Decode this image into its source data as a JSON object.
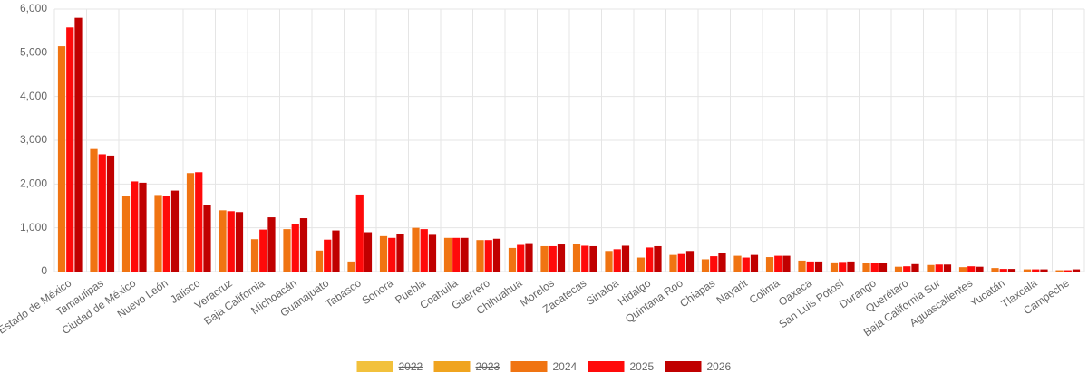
{
  "chart_data": {
    "type": "bar",
    "categories": [
      "Estado de México",
      "Tamaulipas",
      "Ciudad de México",
      "Nuevo León",
      "Jalisco",
      "Veracruz",
      "Baja California",
      "Michoacán",
      "Guanajuato",
      "Tabasco",
      "Sonora",
      "Puebla",
      "Coahuila",
      "Guerrero",
      "Chihuahua",
      "Morelos",
      "Zacatecas",
      "Sinaloa",
      "Hidalgo",
      "Quintana Roo",
      "Chiapas",
      "Nayarit",
      "Colima",
      "Oaxaca",
      "San Luis Potosí",
      "Durango",
      "Querétaro",
      "Baja California Sur",
      "Aguascalientes",
      "Yucatán",
      "Tlaxcala",
      "Campeche"
    ],
    "series": [
      {
        "name": "2022",
        "color": "#f2c13c",
        "hidden": true,
        "values": [
          null,
          null,
          null,
          null,
          null,
          null,
          null,
          null,
          null,
          null,
          null,
          null,
          null,
          null,
          null,
          null,
          null,
          null,
          null,
          null,
          null,
          null,
          null,
          null,
          null,
          null,
          null,
          null,
          null,
          null,
          null,
          null
        ]
      },
      {
        "name": "2023",
        "color": "#f0a41f",
        "hidden": true,
        "values": [
          null,
          null,
          null,
          null,
          null,
          null,
          null,
          null,
          null,
          null,
          null,
          null,
          null,
          null,
          null,
          null,
          null,
          null,
          null,
          null,
          null,
          null,
          null,
          null,
          null,
          null,
          null,
          null,
          null,
          null,
          null,
          null
        ]
      },
      {
        "name": "2024",
        "color": "#f07412",
        "values": [
          5150,
          2800,
          1720,
          1750,
          2250,
          1400,
          740,
          970,
          480,
          230,
          810,
          1000,
          770,
          720,
          540,
          580,
          630,
          470,
          320,
          380,
          280,
          360,
          330,
          250,
          210,
          190,
          110,
          150,
          100,
          80,
          50,
          30
        ]
      },
      {
        "name": "2025",
        "color": "#ff0a0a",
        "values": [
          5580,
          2680,
          2060,
          1720,
          2270,
          1380,
          960,
          1080,
          730,
          1760,
          770,
          970,
          770,
          720,
          610,
          580,
          590,
          510,
          550,
          400,
          350,
          320,
          360,
          230,
          220,
          190,
          120,
          160,
          120,
          60,
          50,
          30
        ]
      },
      {
        "name": "2026",
        "color": "#c00000",
        "values": [
          5800,
          2650,
          2030,
          1850,
          1520,
          1360,
          1240,
          1220,
          940,
          900,
          850,
          840,
          770,
          750,
          650,
          620,
          580,
          590,
          580,
          470,
          430,
          380,
          360,
          230,
          230,
          190,
          170,
          160,
          110,
          60,
          50,
          50
        ]
      }
    ],
    "ylim": [
      0,
      6000
    ],
    "yticks": [
      0,
      {
        "value": 1000,
        "label": "1,000"
      },
      {
        "value": 2000,
        "label": "2,000"
      },
      {
        "value": 3000,
        "label": "3,000"
      },
      {
        "value": 4000,
        "label": "4,000"
      },
      {
        "value": 5000,
        "label": "5,000"
      },
      {
        "value": 6000,
        "label": "6,000"
      }
    ],
    "grid": true,
    "legend": "bottom"
  }
}
